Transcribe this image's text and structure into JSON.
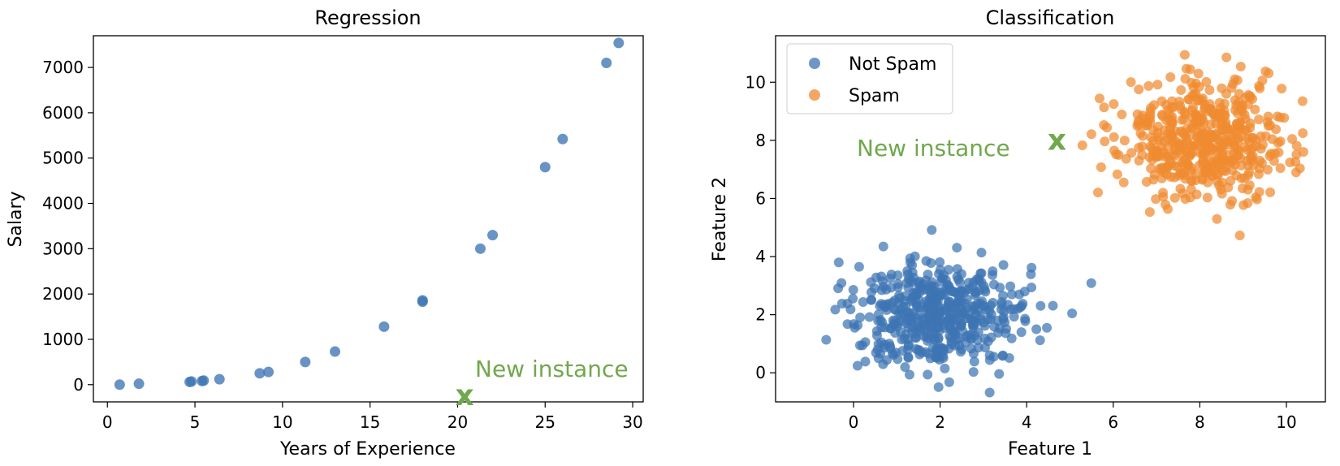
{
  "chart_data": [
    {
      "type": "scatter",
      "title": "Regression",
      "xlabel": "Years of Experience",
      "ylabel": "Salary",
      "xlim": [
        -0.8,
        30.6
      ],
      "ylim": [
        -380,
        7700
      ],
      "xticks": [
        0,
        5,
        10,
        15,
        20,
        25,
        30
      ],
      "yticks": [
        0,
        1000,
        2000,
        3000,
        4000,
        5000,
        6000,
        7000
      ],
      "grid": false,
      "series": [
        {
          "color": "#3d74b3",
          "x": [
            0.7,
            1.8,
            4.7,
            4.8,
            5.4,
            5.5,
            6.4,
            8.7,
            9.2,
            11.3,
            13.0,
            15.8,
            18.0,
            18.0,
            21.3,
            22.0,
            25.0,
            26.0,
            28.5,
            29.2
          ],
          "y": [
            0,
            20,
            60,
            70,
            80,
            90,
            120,
            250,
            280,
            500,
            730,
            1280,
            1830,
            1860,
            3000,
            3300,
            4800,
            5420,
            7100,
            7540
          ]
        }
      ],
      "annotation": {
        "text": "New instance",
        "marker": "x",
        "x": 20.4,
        "y": -250,
        "color": "#70a84c"
      }
    },
    {
      "type": "scatter",
      "title": "Classification",
      "xlabel": "Feature 1",
      "ylabel": "Feature 2",
      "xlim": [
        -1.8,
        10.9
      ],
      "ylim": [
        -1.0,
        11.6
      ],
      "xticks": [
        0,
        2,
        4,
        6,
        8,
        10
      ],
      "yticks": [
        0,
        2,
        4,
        6,
        8,
        10
      ],
      "grid": false,
      "legend_position": "top-left",
      "clusters": [
        {
          "name": "Not Spam",
          "color": "#3d74b3",
          "center": [
            2,
            2
          ],
          "spread": 1,
          "count": 500
        },
        {
          "name": "Spam",
          "color": "#f08a30",
          "center": [
            8,
            8
          ],
          "spread": 1,
          "count": 500
        }
      ],
      "annotation": {
        "text": "New instance",
        "marker": "x",
        "x": 4.7,
        "y": 8.0,
        "color": "#70a84c"
      }
    }
  ]
}
